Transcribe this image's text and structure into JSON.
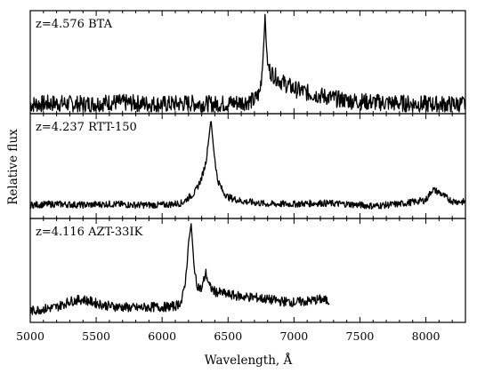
{
  "chart_data": {
    "type": "line",
    "xlabel": "Wavelength, Å",
    "ylabel": "Relative flux",
    "xlim": [
      5000,
      8300
    ],
    "x_ticks": [
      5000,
      5500,
      6000,
      6500,
      7000,
      7500,
      8000
    ],
    "x_minor_step": 100,
    "grid": false,
    "panels": [
      {
        "label": "z=4.576 BTA",
        "x_range": [
          5000,
          8300
        ],
        "peak_x": 6780,
        "series": {
          "x": [
            5000,
            5200,
            5400,
            5600,
            5800,
            6000,
            6200,
            6400,
            6600,
            6700,
            6740,
            6760,
            6770,
            6780,
            6790,
            6800,
            6820,
            6850,
            6900,
            6950,
            7000,
            7100,
            7200,
            7300,
            7400,
            7500,
            7600,
            7800,
            8000,
            8200,
            8300
          ],
          "y": [
            0.08,
            0.09,
            0.08,
            0.1,
            0.09,
            0.08,
            0.09,
            0.08,
            0.1,
            0.12,
            0.2,
            0.45,
            0.7,
            1.0,
            0.72,
            0.5,
            0.42,
            0.38,
            0.32,
            0.28,
            0.24,
            0.2,
            0.17,
            0.14,
            0.12,
            0.11,
            0.1,
            0.09,
            0.08,
            0.08,
            0.08
          ]
        }
      },
      {
        "label": "z=4.237 RTT-150",
        "x_range": [
          5000,
          8300
        ],
        "peak_x": 6370,
        "series": {
          "x": [
            5000,
            5200,
            5400,
            5600,
            5800,
            6000,
            6150,
            6250,
            6300,
            6330,
            6350,
            6370,
            6390,
            6420,
            6460,
            6500,
            6600,
            6800,
            7000,
            7200,
            7400,
            7600,
            7800,
            8000,
            8050,
            8100,
            8150,
            8200,
            8300
          ],
          "y": [
            0.12,
            0.13,
            0.12,
            0.13,
            0.12,
            0.12,
            0.14,
            0.25,
            0.4,
            0.55,
            0.75,
            1.0,
            0.7,
            0.38,
            0.26,
            0.2,
            0.16,
            0.13,
            0.13,
            0.14,
            0.13,
            0.11,
            0.13,
            0.17,
            0.28,
            0.25,
            0.2,
            0.16,
            0.15
          ]
        }
      },
      {
        "label": "z=4.116 AZT-33IK",
        "x_range": [
          5000,
          7270
        ],
        "peak_x": 6220,
        "series": {
          "x": [
            5000,
            5100,
            5200,
            5300,
            5400,
            5500,
            5600,
            5700,
            5800,
            5900,
            6000,
            6100,
            6150,
            6180,
            6200,
            6220,
            6240,
            6260,
            6300,
            6330,
            6360,
            6400,
            6500,
            6600,
            6700,
            6800,
            6900,
            7000,
            7100,
            7200,
            7270
          ],
          "y": [
            0.1,
            0.12,
            0.14,
            0.2,
            0.22,
            0.18,
            0.15,
            0.14,
            0.13,
            0.14,
            0.14,
            0.15,
            0.2,
            0.45,
            0.8,
            1.0,
            0.6,
            0.38,
            0.32,
            0.5,
            0.35,
            0.3,
            0.27,
            0.25,
            0.24,
            0.22,
            0.2,
            0.19,
            0.2,
            0.22,
            0.2
          ]
        }
      }
    ]
  }
}
